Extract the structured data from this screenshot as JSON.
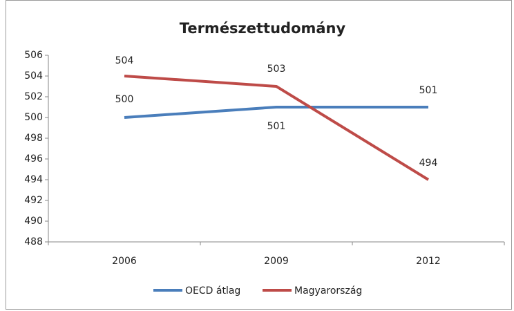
{
  "chart_data": {
    "type": "line",
    "title": "Természettudomány",
    "categories": [
      "2006",
      "2009",
      "2012"
    ],
    "series": [
      {
        "name": "OECD átlag",
        "color": "#4a7ebb",
        "values": [
          500,
          501,
          501
        ]
      },
      {
        "name": "Magyarország",
        "color": "#be4b48",
        "values": [
          504,
          503,
          494
        ]
      }
    ],
    "ylim": [
      488,
      506
    ],
    "yticks": [
      488,
      490,
      492,
      494,
      496,
      498,
      500,
      502,
      504,
      506
    ],
    "legend": "bottom"
  }
}
